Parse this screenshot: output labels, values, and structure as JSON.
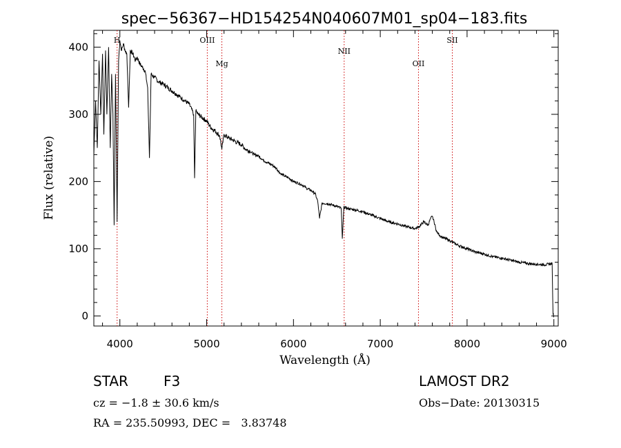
{
  "chart_data": {
    "type": "line",
    "title": "spec−56367−HD154254N040607M01_sp04−183.fits",
    "xlabel": "Wavelength (Å)",
    "ylabel": "Flux (relative)",
    "xlim": [
      3700,
      9050
    ],
    "ylim": [
      -15,
      425
    ],
    "xticks": [
      4000,
      5000,
      6000,
      7000,
      8000,
      9000
    ],
    "yticks": [
      0,
      100,
      200,
      300,
      400
    ],
    "series": [
      {
        "line_color": "#000000",
        "x": [
          3700,
          3720,
          3740,
          3760,
          3780,
          3800,
          3815,
          3835,
          3850,
          3870,
          3889,
          3905,
          3920,
          3934,
          3950,
          3968,
          3985,
          4000,
          4020,
          4040,
          4060,
          4080,
          4101,
          4120,
          4150,
          4180,
          4200,
          4230,
          4260,
          4290,
          4320,
          4341,
          4360,
          4400,
          4450,
          4500,
          4550,
          4600,
          4650,
          4700,
          4750,
          4800,
          4850,
          4861,
          4875,
          4900,
          4950,
          5000,
          5050,
          5100,
          5150,
          5175,
          5200,
          5250,
          5300,
          5350,
          5400,
          5450,
          5500,
          5550,
          5600,
          5650,
          5700,
          5750,
          5800,
          5850,
          5900,
          5950,
          6000,
          6050,
          6100,
          6150,
          6200,
          6250,
          6280,
          6300,
          6330,
          6400,
          6450,
          6500,
          6550,
          6563,
          6580,
          6620,
          6700,
          6800,
          6900,
          7000,
          7100,
          7200,
          7300,
          7400,
          7450,
          7500,
          7550,
          7580,
          7600,
          7620,
          7650,
          7700,
          7800,
          7900,
          8000,
          8100,
          8200,
          8300,
          8400,
          8500,
          8600,
          8700,
          8800,
          8900,
          8980,
          8990,
          9000
        ],
        "y": [
          240,
          320,
          250,
          380,
          300,
          390,
          270,
          395,
          300,
          400,
          250,
          360,
          300,
          135,
          360,
          140,
          380,
          410,
          395,
          405,
          395,
          390,
          310,
          395,
          390,
          380,
          385,
          375,
          370,
          365,
          340,
          235,
          360,
          355,
          348,
          345,
          340,
          335,
          330,
          325,
          320,
          315,
          300,
          205,
          305,
          300,
          295,
          290,
          280,
          275,
          268,
          248,
          270,
          265,
          262,
          258,
          255,
          248,
          245,
          240,
          238,
          232,
          228,
          225,
          220,
          212,
          208,
          205,
          200,
          198,
          195,
          190,
          187,
          182,
          170,
          145,
          168,
          167,
          165,
          163,
          160,
          115,
          162,
          160,
          158,
          155,
          150,
          145,
          140,
          137,
          133,
          130,
          133,
          140,
          135,
          145,
          148,
          140,
          125,
          118,
          112,
          105,
          100,
          95,
          92,
          88,
          86,
          83,
          80,
          78,
          77,
          76,
          78,
          3,
          0
        ]
      }
    ],
    "line_markers": [
      {
        "label": "H",
        "x": 3968,
        "label_level": "high"
      },
      {
        "label": "OIII",
        "x": 5007,
        "label_level": "high"
      },
      {
        "label": "Mg",
        "x": 5175,
        "label_level": "low"
      },
      {
        "label": "NII",
        "x": 6584,
        "label_level": "mid"
      },
      {
        "label": "OII",
        "x": 7440,
        "label_level": "low"
      },
      {
        "label": "SII",
        "x": 7830,
        "label_level": "high"
      }
    ],
    "marker_color": "#cc0000",
    "grid": false,
    "legend": "none"
  },
  "info": {
    "class_label": "STAR",
    "subclass_label": "F3",
    "velocity_line": "cz = −1.8 ± 30.6 km/s",
    "coord_line": "RA = 235.50993, DEC =   3.83748",
    "survey_label": "LAMOST DR2",
    "obs_date_line": "Obs−Date: 20130315"
  }
}
